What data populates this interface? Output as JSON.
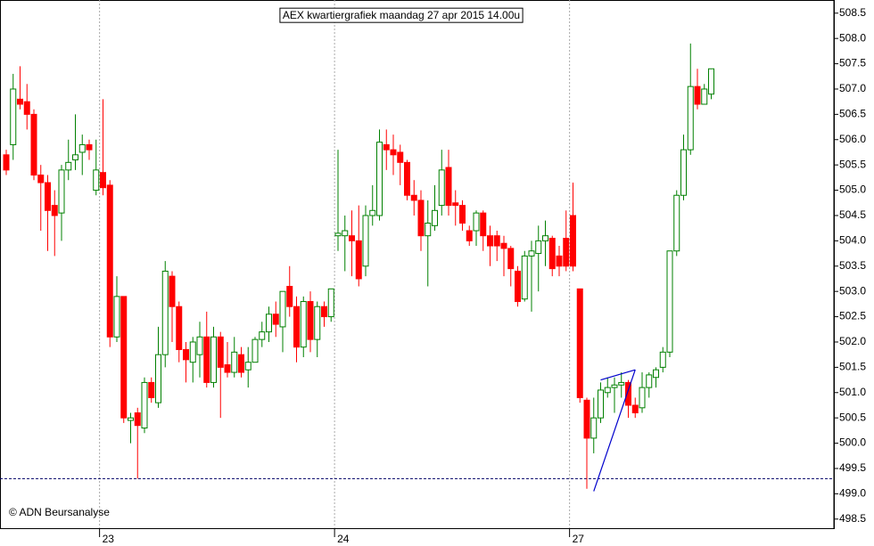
{
  "chart_data": {
    "type": "candlestick",
    "title": "AEX kwartiergrafiek maandag 27 apr 2015 14.00u",
    "credit": "© ADN Beursanalyse",
    "categories": [
      null,
      null,
      null,
      null,
      null,
      null,
      null,
      null,
      null,
      null,
      null,
      null,
      null,
      null,
      "23",
      null,
      null,
      null,
      null,
      null,
      null,
      null,
      null,
      null,
      null,
      null,
      null,
      null,
      null,
      null,
      null,
      null,
      null,
      null,
      null,
      null,
      null,
      null,
      null,
      null,
      null,
      null,
      null,
      null,
      null,
      null,
      null,
      null,
      "24",
      null,
      null,
      null,
      null,
      null,
      null,
      null,
      null,
      null,
      null,
      null,
      null,
      null,
      null,
      null,
      null,
      null,
      null,
      null,
      null,
      null,
      null,
      null,
      null,
      null,
      null,
      null,
      null,
      null,
      null,
      null,
      null,
      null,
      "27",
      null,
      null,
      null,
      null,
      null,
      null,
      null,
      null,
      null,
      null,
      null,
      null,
      null,
      null,
      null,
      null,
      null,
      null,
      null,
      null
    ],
    "up_color": "#008000",
    "down_color": "#ff0000",
    "open": [
      505.7,
      505.9,
      506.8,
      506.75,
      506.5,
      505.3,
      505.15,
      504.7,
      504.55,
      505.4,
      505.6,
      505.75,
      505.9,
      505.0,
      505.35,
      505.1,
      502.1,
      502.9,
      500.45,
      500.6,
      500.3,
      501.2,
      500.8,
      501.75,
      503.3,
      502.7,
      501.85,
      501.6,
      501.75,
      502.1,
      501.2,
      502.1,
      501.55,
      501.4,
      501.75,
      501.45,
      501.6,
      502.05,
      502.2,
      502.55,
      502.3,
      503.1,
      502.7,
      501.9,
      502.8,
      502.05,
      502.7,
      502.5,
      504.1,
      504.1,
      504.1,
      504.0,
      503.5,
      504.5,
      504.5,
      505.9,
      505.8,
      505.75,
      505.55,
      504.9,
      504.8,
      504.1,
      504.3,
      504.7,
      505.45,
      504.75,
      504.7,
      504.2,
      504.2,
      504.55,
      504.1,
      504.1,
      503.95,
      503.85,
      503.4,
      502.85,
      503.7,
      503.75,
      504.0,
      504.05,
      503.7,
      504.05,
      504.5,
      503.05,
      500.85,
      500.1,
      500.5,
      501.0,
      501.1,
      501.15,
      501.2,
      500.75,
      500.7,
      501.1,
      501.3,
      501.5,
      501.8,
      503.8,
      504.9,
      505.8,
      507.05,
      506.7,
      506.9
    ],
    "high": [
      505.8,
      507.3,
      507.45,
      507.1,
      506.6,
      505.5,
      505.3,
      505.0,
      505.5,
      506.0,
      506.5,
      506.1,
      506.0,
      506.0,
      506.8,
      505.2,
      503.3,
      502.9,
      500.6,
      500.7,
      501.3,
      501.3,
      502.3,
      503.6,
      503.4,
      502.8,
      502.0,
      502.1,
      502.4,
      502.6,
      502.3,
      502.2,
      502.0,
      502.1,
      501.9,
      501.9,
      502.1,
      502.4,
      502.7,
      502.8,
      503.0,
      503.5,
      502.9,
      502.9,
      503.0,
      502.8,
      502.8,
      503.05,
      505.8,
      504.5,
      504.6,
      504.7,
      504.7,
      505.1,
      506.2,
      506.2,
      506.1,
      505.9,
      505.6,
      505.2,
      505.0,
      504.8,
      505.1,
      505.8,
      505.8,
      505.0,
      504.8,
      504.3,
      504.6,
      504.6,
      504.3,
      504.2,
      504.1,
      503.9,
      503.5,
      503.8,
      504.0,
      504.3,
      504.4,
      504.1,
      503.9,
      504.6,
      505.15,
      503.05,
      500.9,
      500.9,
      501.2,
      501.3,
      501.3,
      501.4,
      501.25,
      500.9,
      501.4,
      501.4,
      501.5,
      501.9,
      503.8,
      505.0,
      506.1,
      507.9,
      507.4,
      507.1,
      507.4
    ],
    "low": [
      505.3,
      505.6,
      506.6,
      506.2,
      505.2,
      504.2,
      503.8,
      503.7,
      504.0,
      505.2,
      505.4,
      505.3,
      505.6,
      504.9,
      504.9,
      501.9,
      502.0,
      500.4,
      500.0,
      499.3,
      500.2,
      500.8,
      500.7,
      501.5,
      502.0,
      501.6,
      501.2,
      501.2,
      501.3,
      501.1,
      501.1,
      500.5,
      501.3,
      501.3,
      501.3,
      501.1,
      501.6,
      501.9,
      502.0,
      502.1,
      501.8,
      502.5,
      501.6,
      501.7,
      501.8,
      501.7,
      502.3,
      502.4,
      503.8,
      503.4,
      503.3,
      503.1,
      503.3,
      504.3,
      504.4,
      505.4,
      505.3,
      505.1,
      504.8,
      504.5,
      503.8,
      503.1,
      504.2,
      504.5,
      504.5,
      504.3,
      504.2,
      503.9,
      503.9,
      503.8,
      503.5,
      503.6,
      503.3,
      503.1,
      502.7,
      502.8,
      502.6,
      503.0,
      503.5,
      503.3,
      503.3,
      503.4,
      503.4,
      500.8,
      499.1,
      499.8,
      500.4,
      500.9,
      500.6,
      500.9,
      500.5,
      500.5,
      500.6,
      500.9,
      501.1,
      501.4,
      501.7,
      503.7,
      504.8,
      505.7,
      506.6,
      506.7,
      506.8
    ],
    "close": [
      505.4,
      507.0,
      506.7,
      506.5,
      505.3,
      505.15,
      504.6,
      504.5,
      505.4,
      505.55,
      505.7,
      505.9,
      505.8,
      505.4,
      505.05,
      502.1,
      502.9,
      500.5,
      500.5,
      500.35,
      501.2,
      500.9,
      501.75,
      503.4,
      502.7,
      501.85,
      501.65,
      502.0,
      502.1,
      501.2,
      502.1,
      501.5,
      501.4,
      501.8,
      501.4,
      501.6,
      502.05,
      502.2,
      502.55,
      502.35,
      503.0,
      502.7,
      501.9,
      502.8,
      502.05,
      502.7,
      502.5,
      503.05,
      504.15,
      504.2,
      504.0,
      503.25,
      504.5,
      504.6,
      505.95,
      505.8,
      505.7,
      505.55,
      504.9,
      504.8,
      504.1,
      504.35,
      504.6,
      505.4,
      504.7,
      504.7,
      504.35,
      504.0,
      504.55,
      504.1,
      503.9,
      503.9,
      503.85,
      503.45,
      502.8,
      503.7,
      503.8,
      504.0,
      504.1,
      503.45,
      503.5,
      503.5,
      503.5,
      500.9,
      500.1,
      500.5,
      501.05,
      501.1,
      501.15,
      501.2,
      500.75,
      500.6,
      501.1,
      501.35,
      501.45,
      501.8,
      503.8,
      504.9,
      505.8,
      507.05,
      506.7,
      507.0,
      507.4
    ],
    "hline": 499.3,
    "trendlines": [
      {
        "x": [
          85,
          91
        ],
        "y": [
          499.05,
          501.45
        ]
      },
      {
        "x": [
          86,
          91
        ],
        "y": [
          501.25,
          501.45
        ]
      }
    ],
    "trendline_color": "#0000cc",
    "ylim": [
      498.32,
      508.76
    ],
    "yticks": [
      {
        "value": 498.5,
        "label": "498.5"
      },
      {
        "value": 499,
        "label": "499.0"
      },
      499.5,
      {
        "value": 500,
        "label": "500.0"
      },
      500.5,
      {
        "value": 501,
        "label": "501.0"
      },
      501.5,
      {
        "value": 502,
        "label": "502.0"
      },
      502.5,
      {
        "value": 503,
        "label": "503.0"
      },
      503.5,
      {
        "value": 504,
        "label": "504.0"
      },
      504.5,
      {
        "value": 505,
        "label": "505.0"
      },
      505.5,
      {
        "value": 506,
        "label": "506.0"
      },
      506.5,
      {
        "value": 507,
        "label": "507.0"
      },
      507.5,
      {
        "value": 508,
        "label": "508.0"
      },
      508.5
    ]
  }
}
